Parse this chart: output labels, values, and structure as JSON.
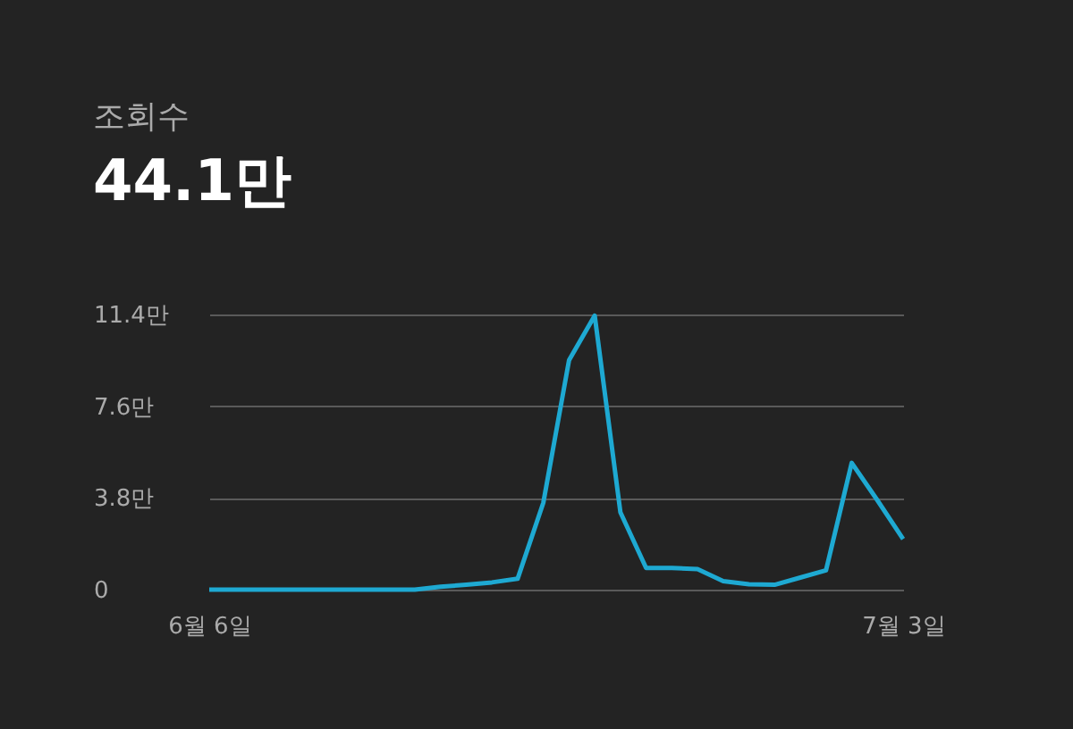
{
  "chart_data": {
    "type": "line",
    "title": "조회수",
    "subtitle": "44.1만",
    "categories": [
      "6월 6일",
      null,
      null,
      null,
      null,
      null,
      null,
      null,
      null,
      null,
      null,
      null,
      null,
      null,
      null,
      null,
      null,
      null,
      null,
      null,
      null,
      null,
      null,
      null,
      null,
      null,
      null,
      "7월 3일"
    ],
    "series": [
      {
        "color": "#1ea9d2",
        "values": [
          0,
          0,
          0,
          0,
          0,
          0,
          0,
          0,
          0,
          0.12,
          0.2,
          0.3,
          0.45,
          3.6,
          9.5,
          11.35,
          3.2,
          0.9,
          0.9,
          0.85,
          0.35,
          0.22,
          0.2,
          0.5,
          0.8,
          5.25,
          3.7,
          2.1
        ]
      }
    ],
    "ylim": [
      0,
      11.4
    ],
    "yticks": [
      0,
      {
        "value": 3.8,
        "label": "3.8만"
      },
      {
        "value": 7.6,
        "label": "7.6만"
      },
      {
        "value": 11.4,
        "label": "11.4만"
      }
    ],
    "grid": "y",
    "legend": false,
    "marker": "none",
    "line_style": "solid"
  }
}
